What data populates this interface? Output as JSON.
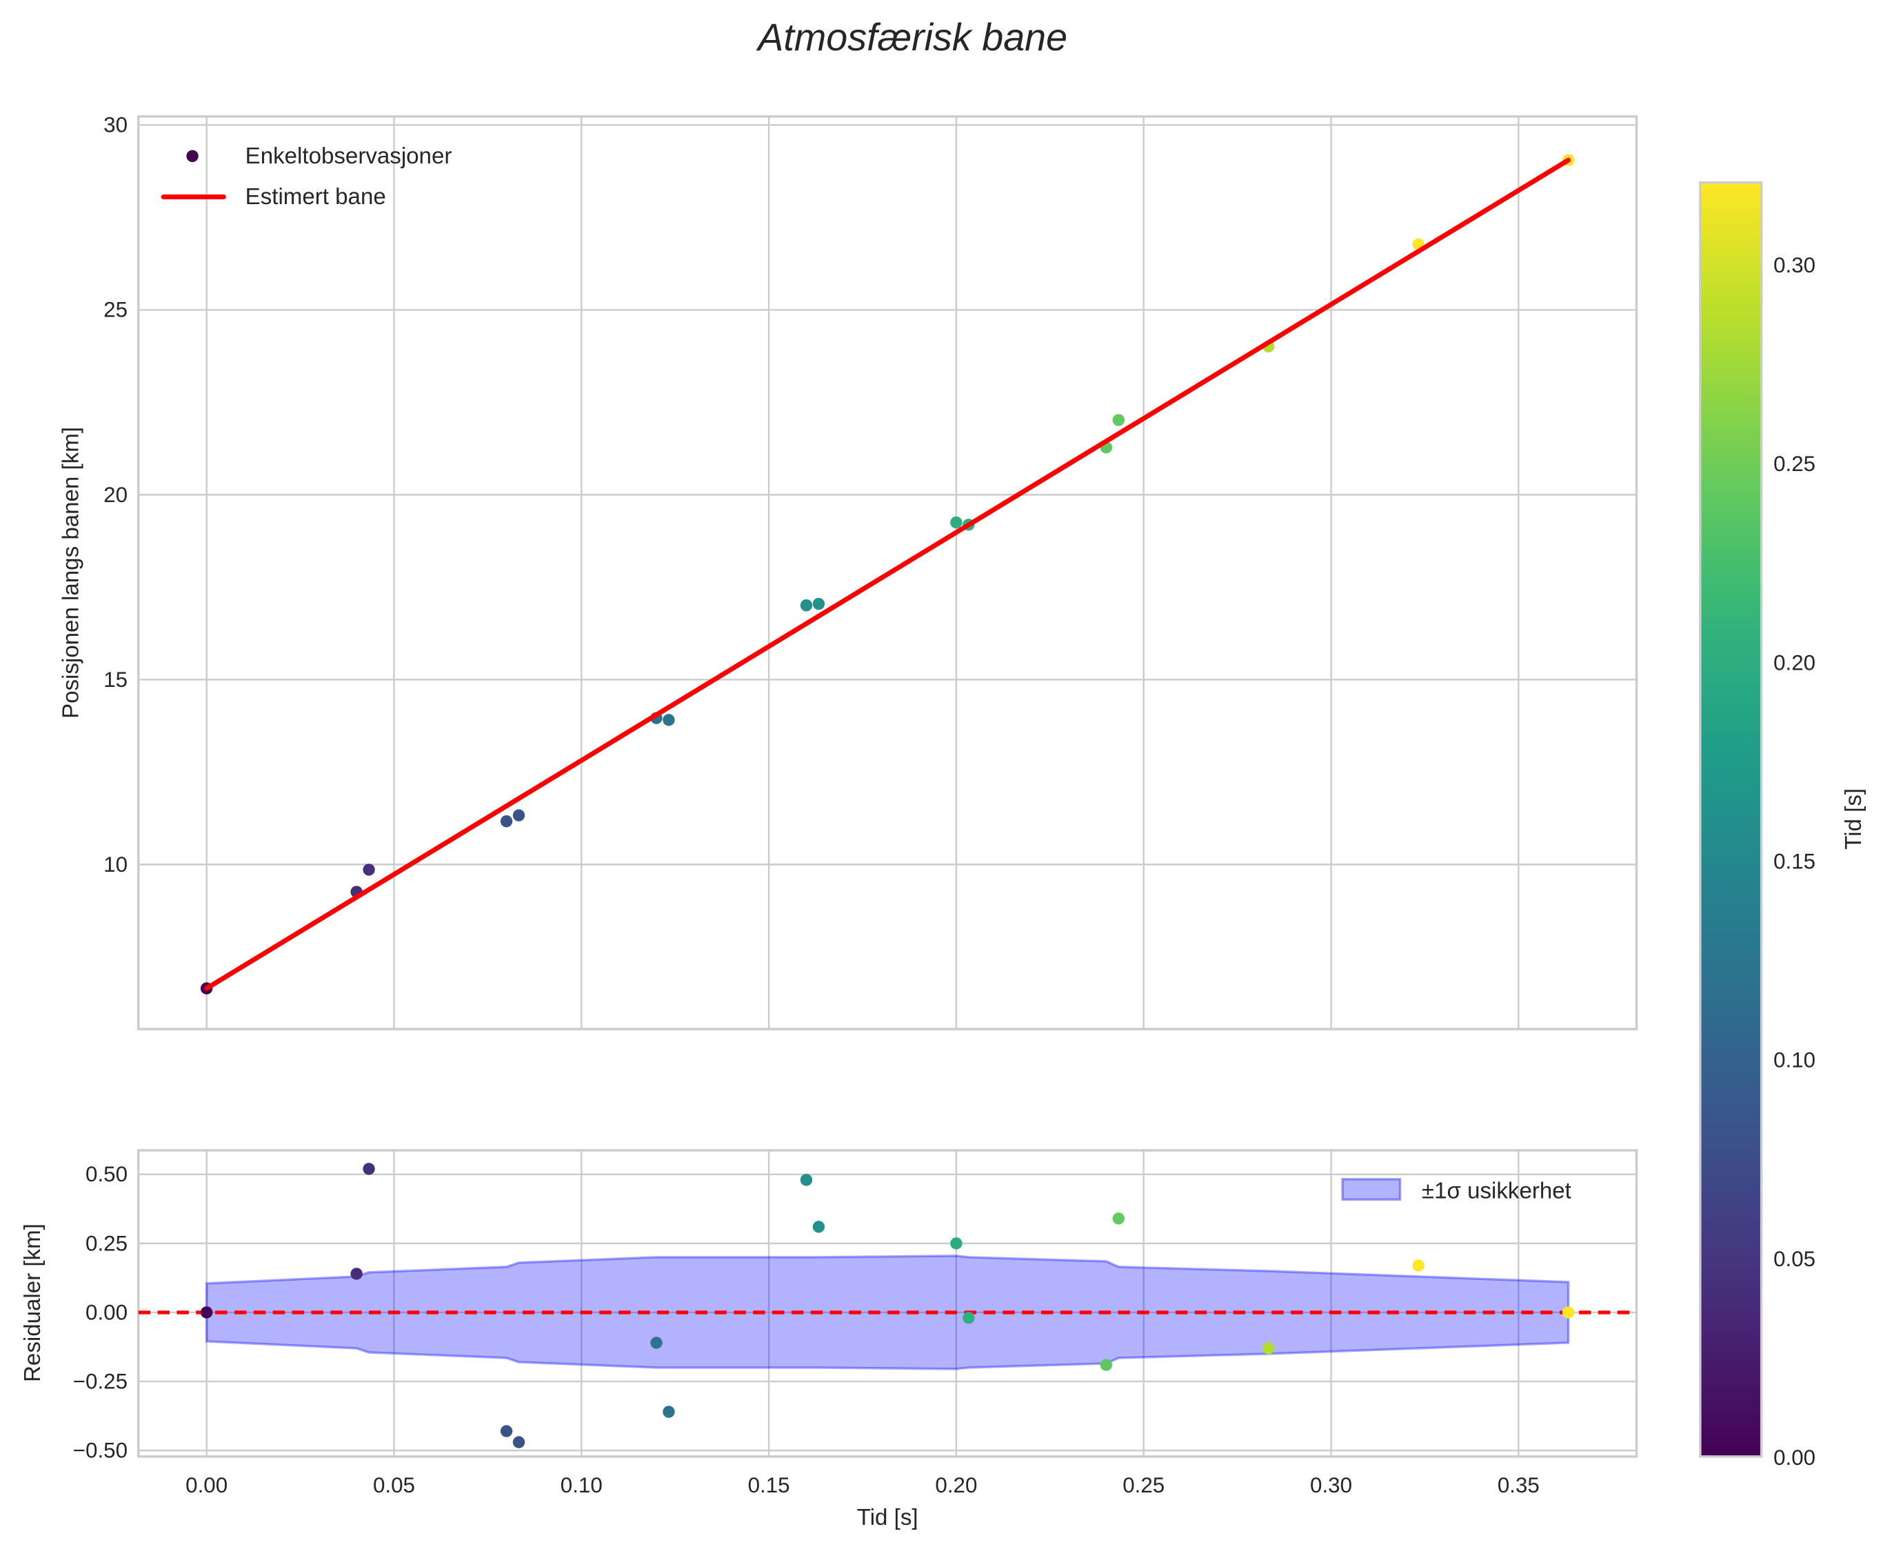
{
  "chart_data": [
    {
      "type": "scatter",
      "title": "Atmosfærisk bane",
      "xlabel": "",
      "ylabel": "Posisjonen langs banen [km]",
      "xlim": [
        -0.0182,
        0.3815
      ],
      "ylim": [
        5.55,
        30.23
      ],
      "xticks": [
        0.0,
        0.05,
        0.1,
        0.15,
        0.2,
        0.25,
        0.3,
        0.35
      ],
      "yticks": [
        10,
        15,
        20,
        25,
        30
      ],
      "ytick_labels": [
        "10",
        "15",
        "20",
        "25",
        "30"
      ],
      "grid": true,
      "legend": {
        "placement": "top-left",
        "entries": [
          "Enkeltobservasjoner",
          "Estimert bane"
        ]
      },
      "points": {
        "t": [
          0.0,
          0.04,
          0.0433,
          0.08,
          0.0833,
          0.12,
          0.1233,
          0.16,
          0.1633,
          0.2,
          0.2033,
          0.24,
          0.2433,
          0.2833,
          0.3233,
          0.3633
        ],
        "y": [
          6.65,
          9.26,
          9.86,
          11.17,
          11.33,
          13.96,
          13.91,
          17.01,
          17.05,
          19.25,
          19.19,
          21.28,
          22.02,
          24.01,
          26.77,
          29.05
        ]
      },
      "fit_line": {
        "t": [
          0.0,
          0.3633
        ],
        "y": [
          6.65,
          29.05
        ],
        "color": "#ff0000"
      }
    },
    {
      "type": "scatter",
      "xlabel": "Tid [s]",
      "ylabel": "Residualer [km]",
      "xlim": [
        -0.0182,
        0.3815
      ],
      "ylim": [
        -0.522,
        0.587
      ],
      "xticks": [
        0.0,
        0.05,
        0.1,
        0.15,
        0.2,
        0.25,
        0.3,
        0.35
      ],
      "xtick_labels": [
        "0.00",
        "0.05",
        "0.10",
        "0.15",
        "0.20",
        "0.25",
        "0.30",
        "0.35"
      ],
      "yticks": [
        0.5,
        0.25,
        0.0,
        -0.25,
        -0.5
      ],
      "ytick_labels": [
        "0.50",
        "0.25",
        "0.00",
        "−0.25",
        "−0.50"
      ],
      "grid": true,
      "legend": {
        "placement": "top-right",
        "entries": [
          "±1σ usikkerhet"
        ]
      },
      "points": {
        "t": [
          0.0,
          0.04,
          0.0433,
          0.08,
          0.0833,
          0.12,
          0.1233,
          0.16,
          0.1633,
          0.2,
          0.2033,
          0.24,
          0.2433,
          0.2833,
          0.3233,
          0.3633
        ],
        "residual": [
          0.0,
          0.14,
          0.52,
          -0.43,
          -0.47,
          -0.11,
          -0.36,
          0.48,
          0.31,
          0.25,
          -0.02,
          -0.19,
          0.34,
          -0.13,
          0.17,
          0.0
        ]
      },
      "sigma_band": {
        "t": [
          0.0,
          0.04,
          0.0433,
          0.08,
          0.0833,
          0.12,
          0.1233,
          0.16,
          0.1633,
          0.2,
          0.2033,
          0.24,
          0.2433,
          0.2833,
          0.3233,
          0.3633
        ],
        "sigma": [
          0.105,
          0.13,
          0.145,
          0.165,
          0.18,
          0.2,
          0.2,
          0.2,
          0.2,
          0.205,
          0.2,
          0.185,
          0.165,
          0.15,
          0.13,
          0.11
        ],
        "color": "#0000ff"
      },
      "zero_line": {
        "value": 0.0,
        "color": "#ff0000"
      }
    }
  ],
  "colorbar": {
    "label": "Tid [s]",
    "range": [
      0.0,
      0.3205
    ],
    "ticks": [
      0.0,
      0.05,
      0.1,
      0.15,
      0.2,
      0.25,
      0.3
    ],
    "tick_labels": [
      "0.00",
      "0.05",
      "0.10",
      "0.15",
      "0.20",
      "0.25",
      "0.30"
    ],
    "colormap": "viridis"
  }
}
